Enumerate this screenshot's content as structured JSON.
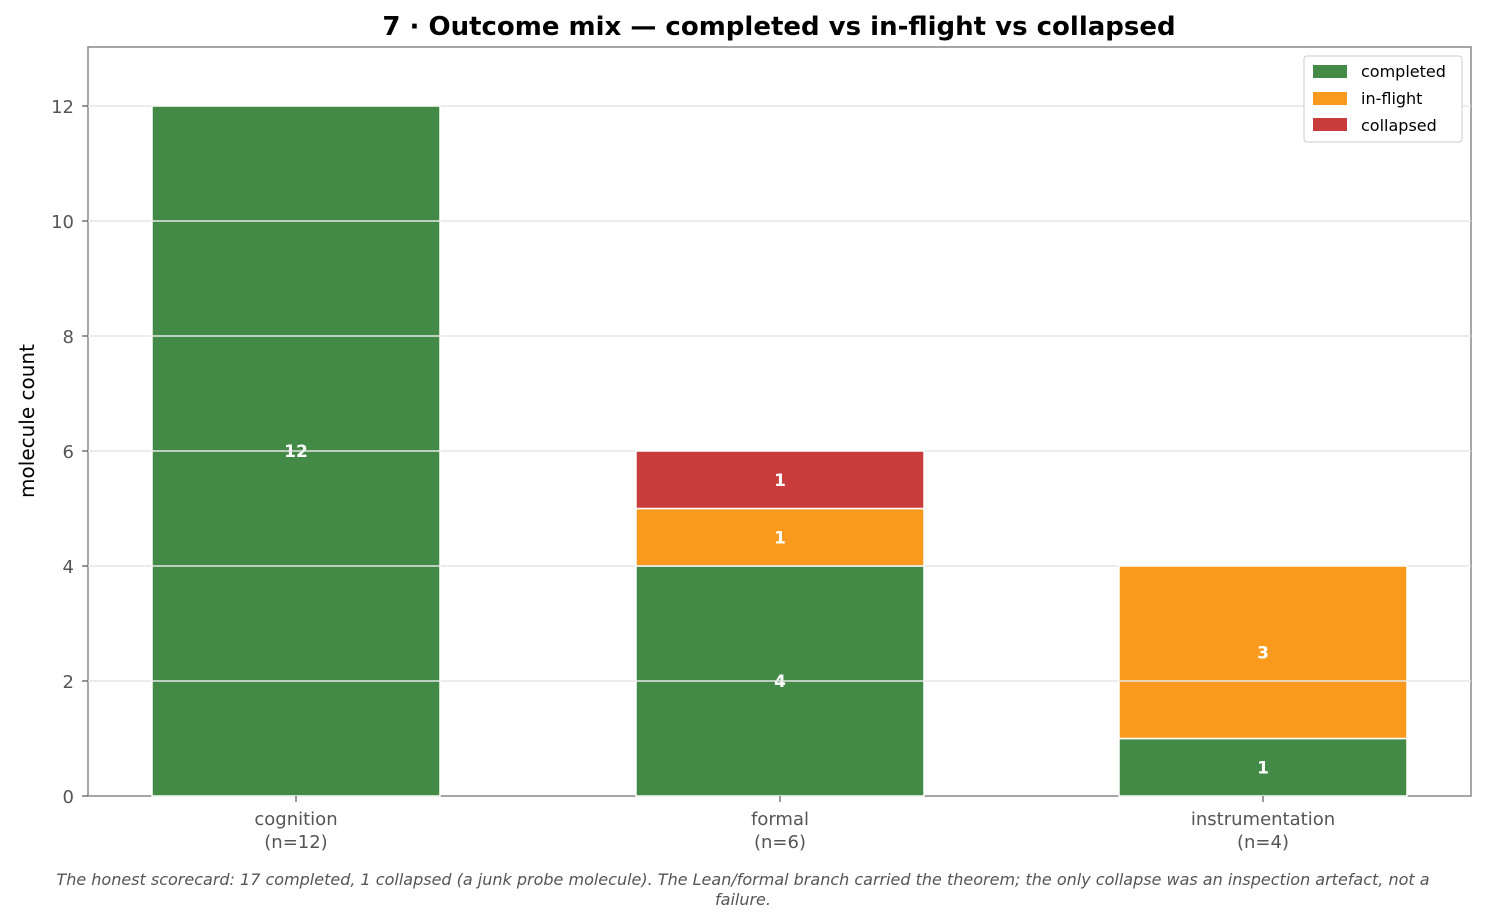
{
  "chart_data": {
    "type": "bar",
    "stacked": true,
    "title": "7 · Outcome mix — completed vs in-flight vs collapsed",
    "xlabel": "",
    "ylabel": "molecule count",
    "ylim": [
      0,
      13
    ],
    "yticks": [
      0,
      2,
      4,
      6,
      8,
      10,
      12
    ],
    "grid": true,
    "legend_position": "top-right",
    "categories": [
      {
        "name": "cognition",
        "count_label": "(n=12)"
      },
      {
        "name": "formal",
        "count_label": "(n=6)"
      },
      {
        "name": "instrumentation",
        "count_label": "(n=4)"
      }
    ],
    "series": [
      {
        "name": "completed",
        "color": "#438a46",
        "values": [
          12,
          4,
          1
        ]
      },
      {
        "name": "in-flight",
        "color": "#f9991d",
        "values": [
          0,
          1,
          3
        ]
      },
      {
        "name": "collapsed",
        "color": "#c93c3c",
        "values": [
          0,
          1,
          0
        ]
      }
    ],
    "caption_lines": [
      "The honest scorecard: 17 completed, 1 collapsed (a junk probe molecule). The Lean/formal branch carried the theorem; the only collapse was an inspection artefact, not a",
      "failure."
    ]
  }
}
